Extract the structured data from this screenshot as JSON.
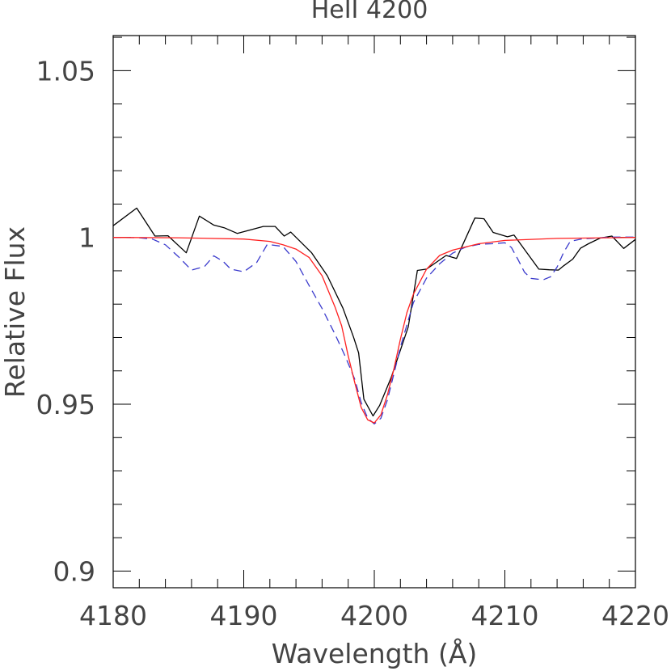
{
  "chart_data": {
    "type": "line",
    "title": "HeII 4200",
    "xlabel": "Wavelength (Å)",
    "ylabel": "Relative Flux",
    "xlim": [
      4180,
      4220
    ],
    "ylim": [
      0.895,
      1.0605
    ],
    "x_ticks": [
      4180,
      4190,
      4200,
      4210,
      4220
    ],
    "x_tick_labels": [
      "4180",
      "4190",
      "4200",
      "4210",
      "4220"
    ],
    "y_ticks": [
      0.9,
      0.95,
      1.0,
      1.05
    ],
    "y_tick_labels": [
      "0.9",
      "0.95",
      "1",
      "1.05"
    ],
    "grid": false,
    "legend": "none",
    "series": [
      {
        "style": "solid",
        "color": "#000000",
        "x": [
          4180,
          4181.8,
          4183.2,
          4184.2,
          4185.6,
          4186.6,
          4187.7,
          4188.5,
          4189.5,
          4191.5,
          4192.4,
          4193.1,
          4193.6,
          4195.2,
          4196.4,
          4197.6,
          4198.4,
          4198.8,
          4199.2,
          4199.9,
          4200.4,
          4201.3,
          4202.6,
          4203.3,
          4204,
          4205.5,
          4206.3,
          4207.7,
          4208.4,
          4209.1,
          4210.2,
          4210.7,
          4212.6,
          4213.4,
          4214.1,
          4214.5,
          4215.2,
          4215.8,
          4216.4,
          4217.3,
          4218.2,
          4219.1,
          4220
        ],
        "y": [
          1.0035,
          1.0088,
          1.0004,
          1.0005,
          0.9954,
          1.0064,
          1.0037,
          1.0029,
          1.0012,
          1.0033,
          1.0033,
          1.0004,
          1.0016,
          0.9954,
          0.9885,
          0.9788,
          0.9702,
          0.9654,
          0.9515,
          0.9465,
          0.9496,
          0.9581,
          0.9732,
          0.9901,
          0.9905,
          0.9946,
          0.9937,
          1.0058,
          1.0056,
          1.0015,
          1.0002,
          1.0007,
          0.9905,
          0.9903,
          0.9902,
          0.9915,
          0.9935,
          0.9968,
          0.9981,
          0.9998,
          1.0004,
          0.9967,
          0.9994
        ]
      },
      {
        "style": "dashed",
        "color": "#3a3acc",
        "x": [
          4180,
          4182,
          4183,
          4184,
          4185,
          4186,
          4187,
          4187.7,
          4188.4,
          4189,
          4190,
          4191,
          4191.8,
          4193,
          4194,
          4195,
          4196,
          4197,
          4197.8,
          4198.5,
          4199,
          4199.5,
          4200,
          4200.5,
          4201,
          4201.5,
          4202,
          4203,
          4204,
          4205,
          4206,
          4207,
          4208,
          4209,
          4210,
          4210.5,
          4211,
          4211.5,
          4212,
          4212.5,
          4213,
          4213.5,
          4214,
          4214.5,
          4215,
          4216,
          4217,
          4218,
          4219,
          4220
        ],
        "y": [
          1.0,
          0.9999,
          0.9995,
          0.9978,
          0.9942,
          0.9902,
          0.9913,
          0.9945,
          0.9929,
          0.9905,
          0.9897,
          0.9925,
          0.9979,
          0.9973,
          0.9928,
          0.9856,
          0.9787,
          0.9709,
          0.9641,
          0.9575,
          0.9505,
          0.9458,
          0.9441,
          0.9458,
          0.9513,
          0.9591,
          0.9671,
          0.9805,
          0.9878,
          0.9921,
          0.9953,
          0.9971,
          0.9979,
          0.9981,
          0.9984,
          0.997,
          0.9934,
          0.9896,
          0.9877,
          0.9875,
          0.9874,
          0.9882,
          0.9911,
          0.9955,
          0.9988,
          0.9996,
          0.9998,
          1.0001,
          1.0001,
          1.0001
        ]
      },
      {
        "style": "solid",
        "color": "#ff2020",
        "x": [
          4180,
          4185,
          4190,
          4192,
          4193,
          4194,
          4195,
          4196,
          4197,
          4197.5,
          4198,
          4198.5,
          4199,
          4199.5,
          4200,
          4200.5,
          4201,
          4201.5,
          4202,
          4202.5,
          4203,
          4204,
          4205,
          4206,
          4208,
          4210,
          4214,
          4220
        ],
        "y": [
          1.0,
          0.9999,
          0.9995,
          0.9988,
          0.9978,
          0.9965,
          0.994,
          0.9885,
          0.979,
          0.9735,
          0.9645,
          0.9565,
          0.949,
          0.9453,
          0.9444,
          0.9468,
          0.9528,
          0.9605,
          0.9695,
          0.9775,
          0.983,
          0.9905,
          0.9946,
          0.9962,
          0.9981,
          0.9991,
          0.9997,
          1.0
        ]
      }
    ]
  }
}
